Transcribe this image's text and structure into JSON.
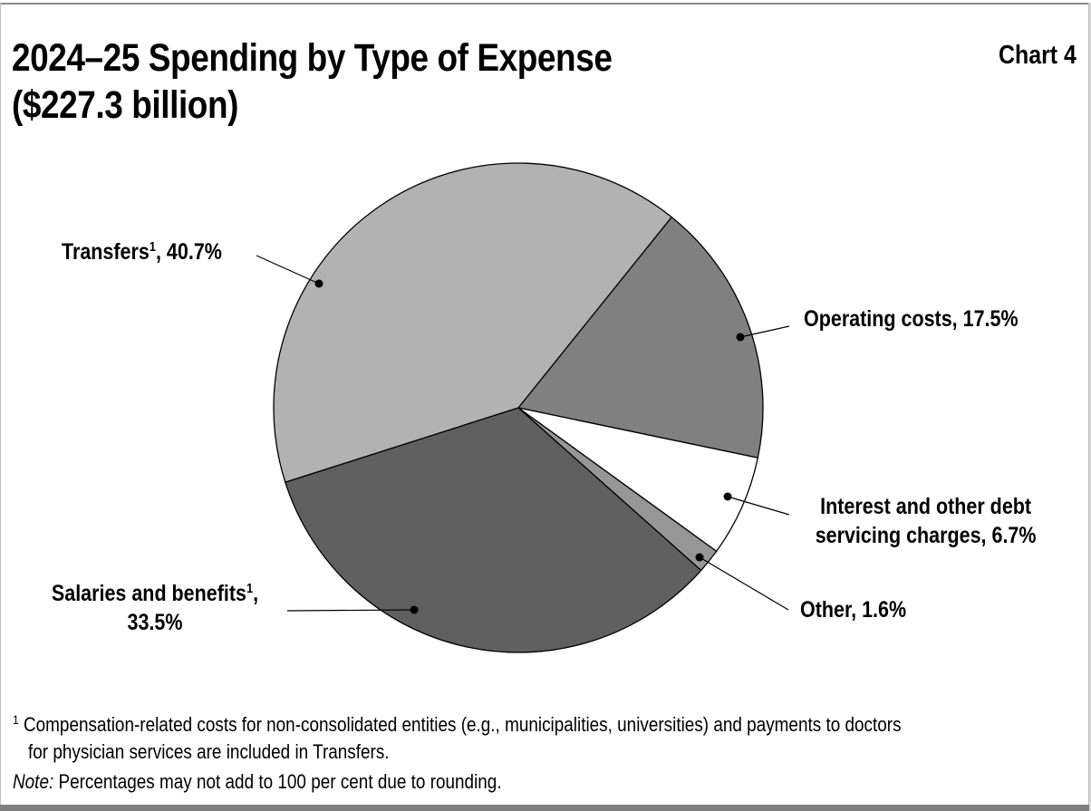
{
  "header": {
    "title_line1": "2024–25 Spending by Type of Expense",
    "title_line2": "($227.3 billion)",
    "chart_number": "Chart 4"
  },
  "labels": {
    "transfers": {
      "name": "Transfers",
      "sup": "1",
      "value": ", 40.7%"
    },
    "operating": {
      "text": "Operating costs, 17.5%"
    },
    "interest": {
      "line1": "Interest and other debt",
      "line2": "servicing charges, 6.7%"
    },
    "other": {
      "text": "Other, 1.6%"
    },
    "salaries": {
      "name": "Salaries and benefits",
      "sup": "1",
      "comma": ",",
      "value": "33.5%"
    }
  },
  "footnotes": {
    "note1_marker": "1",
    "note1_line1": "Compensation-related costs for non-consolidated entities (e.g., municipalities, universities) and payments to doctors",
    "note1_line2": "for physician services are included in Transfers.",
    "note_label": "Note:",
    "note_text": " Percentages may not add to 100 per cent due to rounding."
  },
  "colors": {
    "transfers": "#b2b2b2",
    "operating": "#808080",
    "interest": "#ffffff",
    "other": "#969696",
    "salaries": "#606060"
  },
  "chart_data": {
    "type": "pie",
    "title": "2024–25 Spending by Type of Expense ($227.3 billion)",
    "total": "$227.3 billion",
    "categories": [
      "Transfers",
      "Operating costs",
      "Interest and other debt servicing charges",
      "Other",
      "Salaries and benefits"
    ],
    "values": [
      40.7,
      17.5,
      6.7,
      1.6,
      33.5
    ],
    "unit": "%",
    "label_note": "Footnote 1 applies to Transfers and Salaries and benefits",
    "legend": "none (direct labels with leader lines)"
  }
}
